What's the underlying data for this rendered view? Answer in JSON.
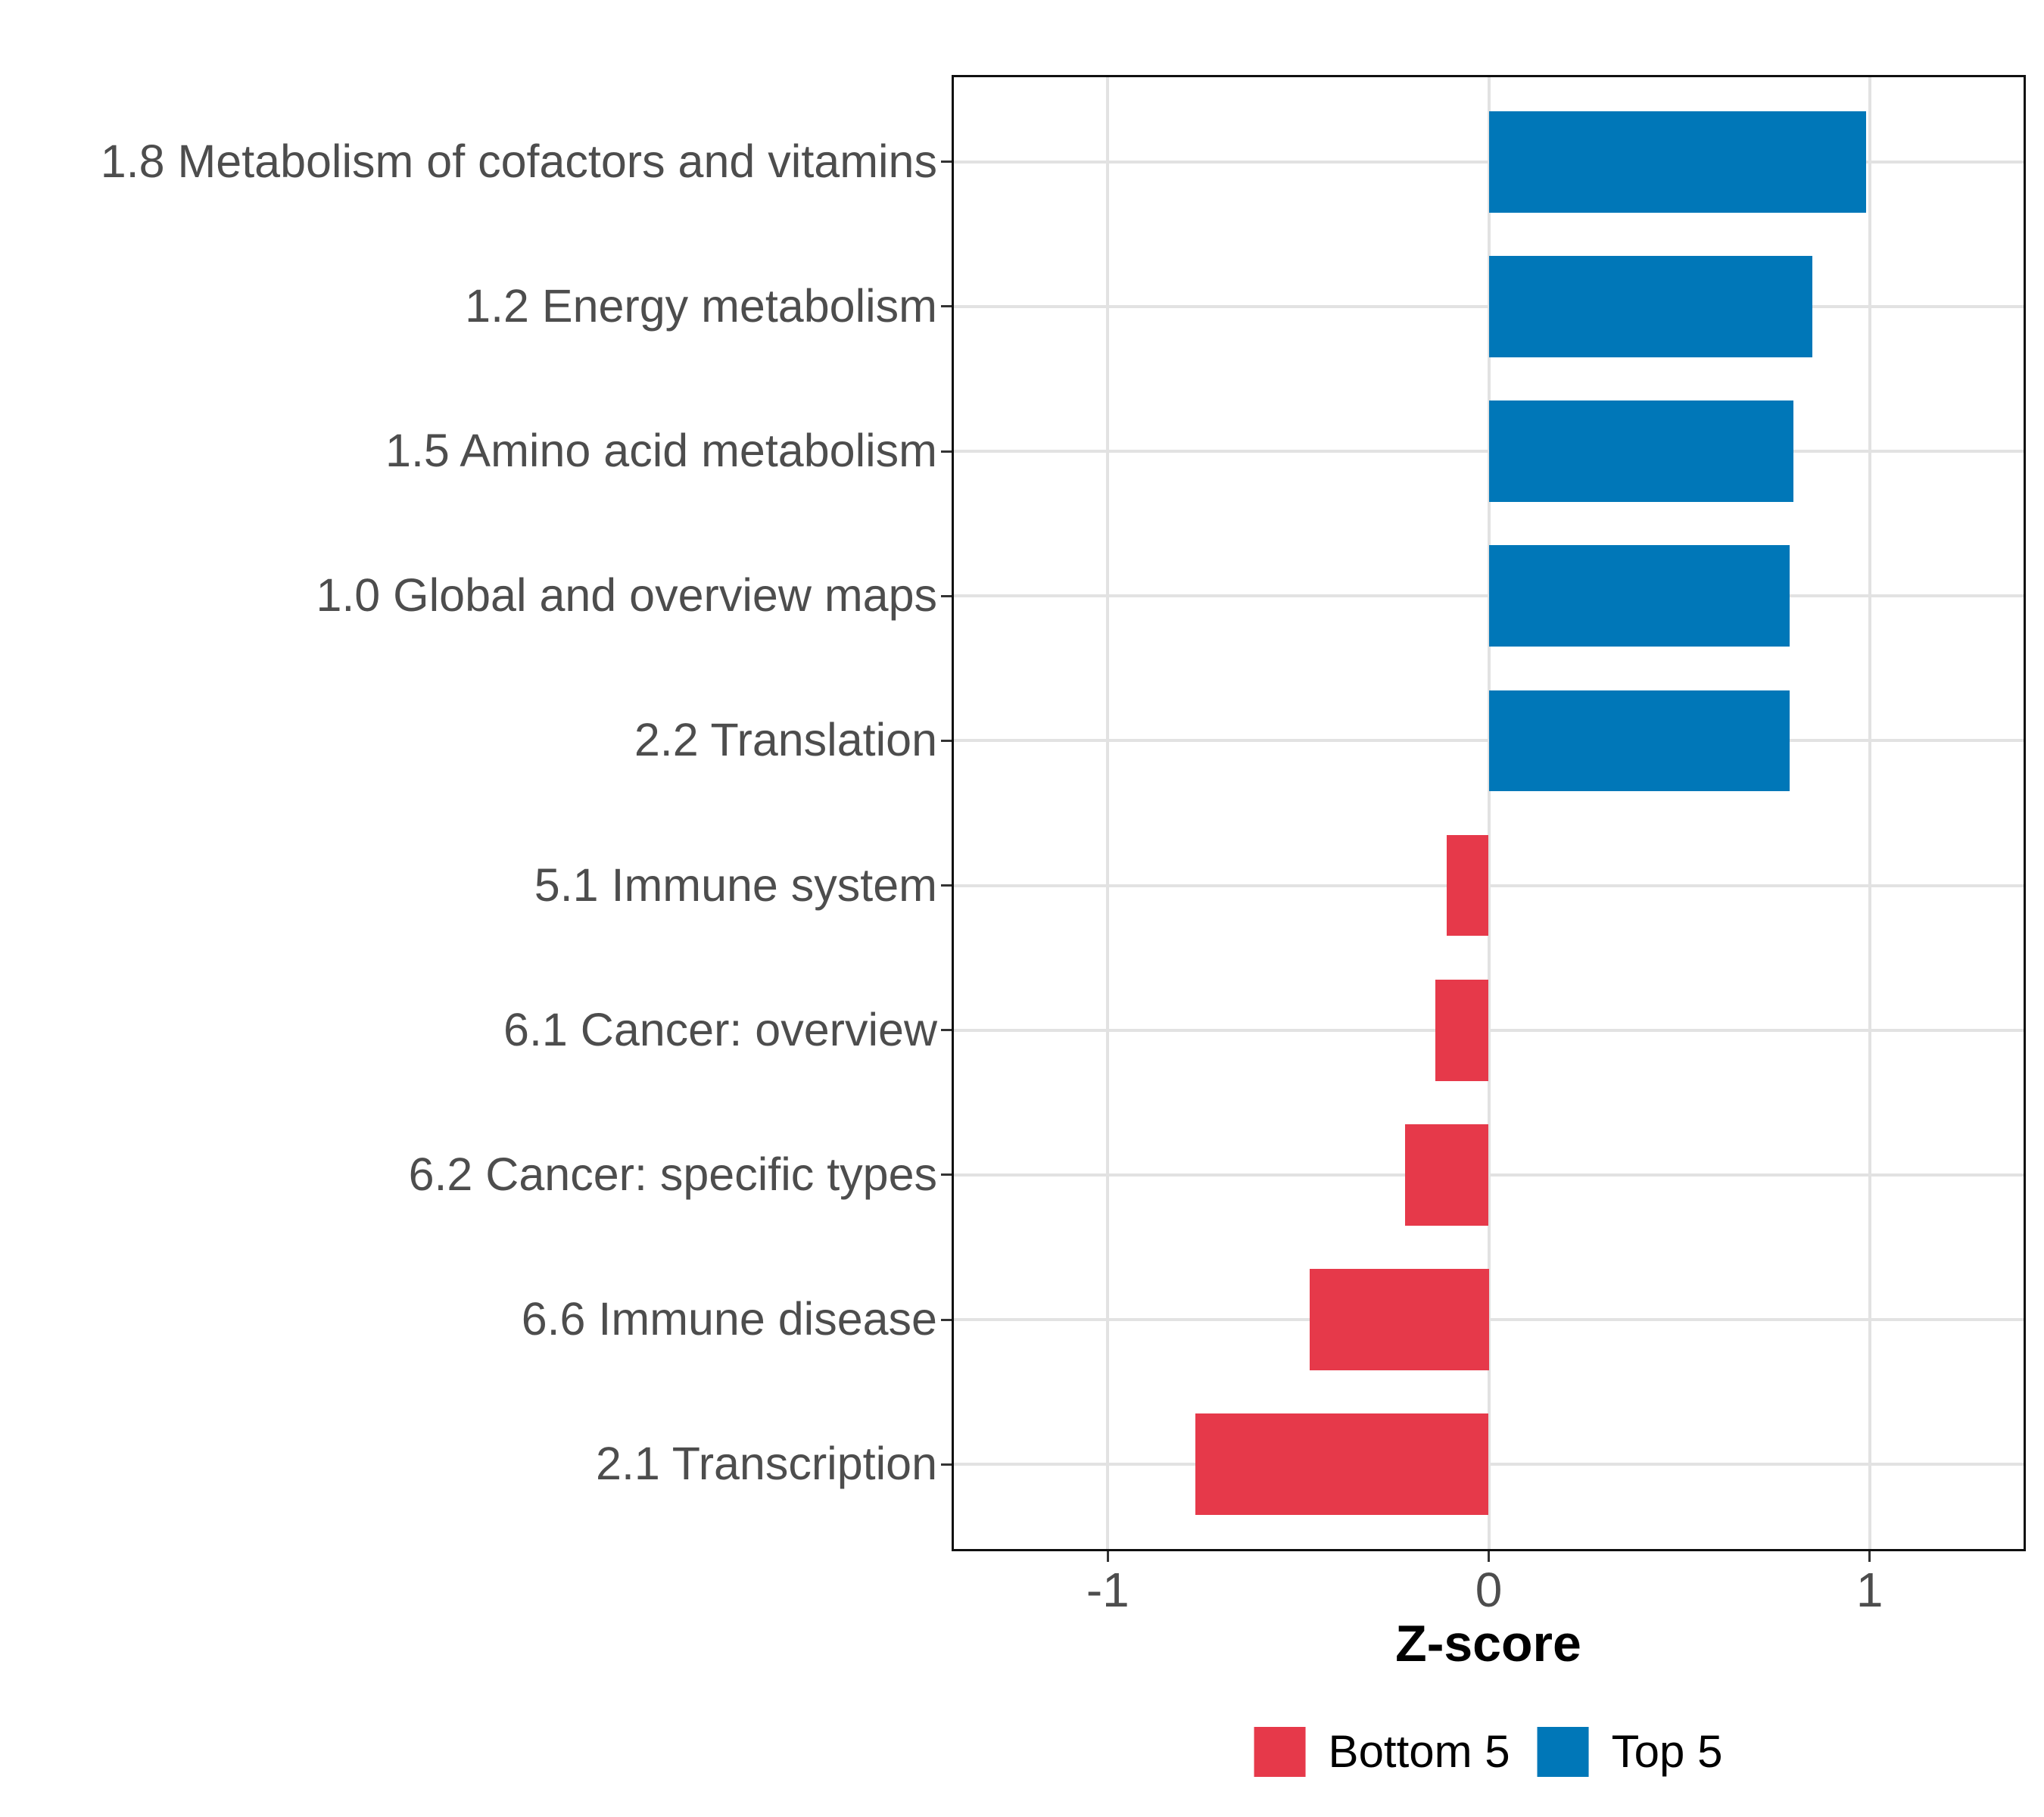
{
  "chart_data": {
    "type": "bar",
    "orientation": "horizontal",
    "title": "",
    "xlabel": "Z-score",
    "ylabel": "",
    "categories": [
      "1.8 Metabolism of cofactors and vitamins",
      "1.2 Energy metabolism",
      "1.5 Amino acid metabolism",
      "1.0 Global and overview maps",
      "2.2 Translation",
      "5.1 Immune system",
      "6.1 Cancer: overview",
      "6.2 Cancer: specific types",
      "6.6 Immune disease",
      "2.1 Transcription"
    ],
    "values": [
      0.99,
      0.85,
      0.8,
      0.79,
      0.79,
      -0.11,
      -0.14,
      -0.22,
      -0.47,
      -0.77
    ],
    "groups": [
      "Top 5",
      "Top 5",
      "Top 5",
      "Top 5",
      "Top 5",
      "Bottom 5",
      "Bottom 5",
      "Bottom 5",
      "Bottom 5",
      "Bottom 5"
    ],
    "colors": {
      "Bottom 5": "#E6394A",
      "Top 5": "#0077B8"
    },
    "xlim": [
      -1.41,
      1.41
    ],
    "xticks": [
      -1,
      0,
      1
    ],
    "xtick_labels": [
      "-1",
      "0",
      "1"
    ],
    "grid": "major",
    "gridline_color": "#E2E2E2",
    "legend": {
      "position": "bottom",
      "entries": [
        {
          "label": "Bottom 5",
          "color": "#E6394A"
        },
        {
          "label": "Top 5",
          "color": "#0077B8"
        }
      ]
    }
  }
}
